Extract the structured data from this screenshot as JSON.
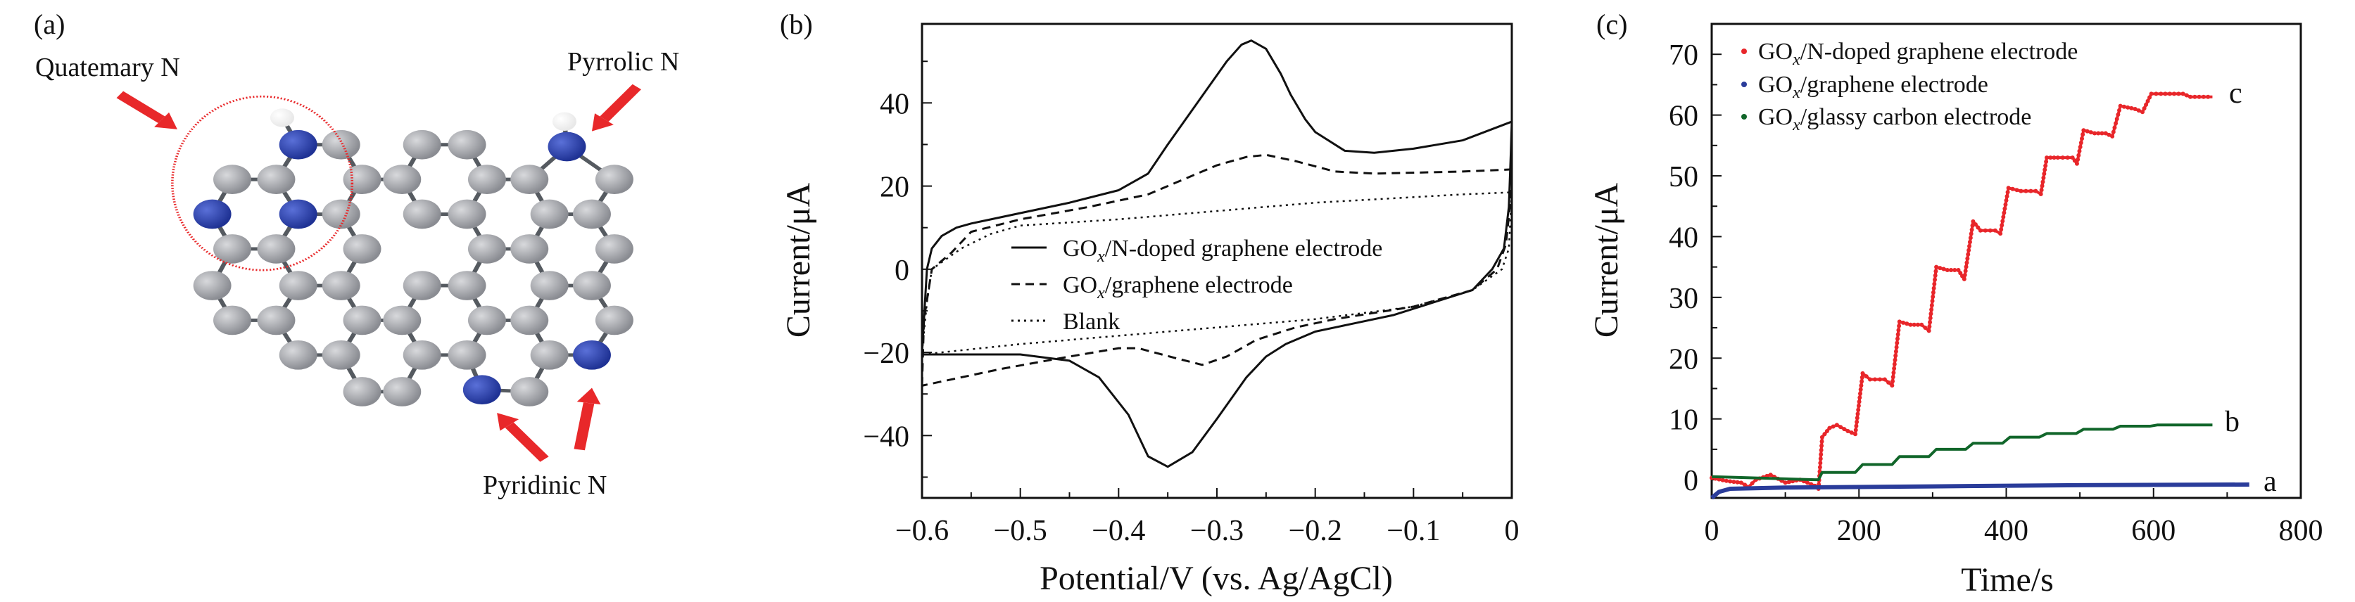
{
  "panel_a": {
    "label": "(a)",
    "annotations": {
      "quaternary": "Quatemary N",
      "pyrrolic": "Pyrrolic N",
      "pyridinic": "Pyridinic N"
    },
    "colors": {
      "carbon": "#8a8c92",
      "nitrogen": "#1f3294",
      "hydrogen": "#e8e8e8",
      "arrow": "#e8282a"
    }
  },
  "chart_data": [
    {
      "type": "line",
      "panel_label": "(b)",
      "title": "",
      "xlabel": "Potential/V (vs. Ag/AgCl)",
      "ylabel": "Current/μA",
      "xlim": [
        -0.6,
        0
      ],
      "ylim": [
        -55,
        59
      ],
      "xticks": [
        -0.6,
        -0.5,
        -0.4,
        -0.3,
        -0.2,
        -0.1,
        0
      ],
      "xtick_labels": [
        "−0.6",
        "−0.5",
        "−0.4",
        "−0.3",
        "−0.2",
        "−0.1",
        "0"
      ],
      "yticks": [
        -40,
        -20,
        0,
        20,
        40
      ],
      "ytick_labels": [
        "−40",
        "−20",
        "0",
        "20",
        "40"
      ],
      "grid": false,
      "legend_position": "center",
      "series": [
        {
          "name": "GOx/N-doped graphene electrode",
          "legend": {
            "prefix": "GO",
            "sub": "x",
            "suffix": "/N-doped graphene electrode"
          },
          "style": "solid",
          "x": [
            -0.6,
            -0.597,
            -0.595,
            -0.59,
            -0.58,
            -0.565,
            -0.55,
            -0.5,
            -0.45,
            -0.4,
            -0.37,
            -0.35,
            -0.32,
            -0.29,
            -0.275,
            -0.265,
            -0.25,
            -0.235,
            -0.225,
            -0.21,
            -0.2,
            -0.17,
            -0.14,
            -0.1,
            -0.05,
            0,
            -0.001,
            -0.003,
            -0.008,
            -0.02,
            -0.04,
            -0.08,
            -0.12,
            -0.16,
            -0.2,
            -0.23,
            -0.25,
            -0.27,
            -0.3,
            -0.325,
            -0.35,
            -0.37,
            -0.39,
            -0.42,
            -0.45,
            -0.5,
            -0.55,
            -0.6
          ],
          "y": [
            -20,
            -8,
            0,
            5,
            8,
            10,
            11,
            13.5,
            16,
            19,
            23,
            30,
            40,
            50,
            54,
            55,
            53,
            47,
            42,
            36,
            33,
            28.5,
            28,
            29,
            31,
            35.5,
            28,
            15,
            5,
            0,
            -5,
            -8,
            -11,
            -13,
            -15,
            -18,
            -21,
            -26,
            -36,
            -44,
            -47.5,
            -45,
            -35,
            -26,
            -22,
            -20.5,
            -20.5,
            -20.5
          ]
        },
        {
          "name": "GOx/graphene electrode",
          "legend": {
            "prefix": "GO",
            "sub": "x",
            "suffix": "/graphene electrode"
          },
          "style": "dashed",
          "x": [
            -0.6,
            -0.598,
            -0.59,
            -0.57,
            -0.55,
            -0.5,
            -0.43,
            -0.37,
            -0.34,
            -0.3,
            -0.27,
            -0.25,
            -0.22,
            -0.18,
            -0.14,
            -0.05,
            0,
            -0.002,
            -0.006,
            -0.015,
            -0.04,
            -0.1,
            -0.18,
            -0.22,
            -0.26,
            -0.29,
            -0.315,
            -0.34,
            -0.38,
            -0.4,
            -0.45,
            -0.52,
            -0.6
          ],
          "y": [
            -28,
            -12,
            0,
            4,
            9,
            12,
            15,
            18,
            21,
            25,
            27,
            27.5,
            26,
            23.5,
            23,
            23.5,
            24,
            15,
            6,
            0,
            -5,
            -9,
            -12,
            -14,
            -17,
            -21,
            -23,
            -21.5,
            -19,
            -19,
            -21,
            -24,
            -28
          ]
        },
        {
          "name": "Blank",
          "legend": {
            "prefix": "Blank",
            "sub": "",
            "suffix": ""
          },
          "style": "dotted",
          "x": [
            -0.6,
            -0.595,
            -0.59,
            -0.56,
            -0.53,
            -0.5,
            -0.4,
            -0.3,
            -0.2,
            -0.05,
            0,
            -0.003,
            -0.01,
            -0.04,
            -0.1,
            -0.2,
            -0.3,
            -0.4,
            -0.5,
            -0.6
          ],
          "y": [
            -20,
            -8,
            0,
            5,
            8.5,
            10.5,
            12,
            14,
            16,
            18,
            18.5,
            5,
            0,
            -5,
            -9,
            -12,
            -14,
            -16,
            -18,
            -20.5
          ]
        }
      ]
    },
    {
      "type": "line",
      "panel_label": "(c)",
      "title": "",
      "xlabel": "Time/s",
      "ylabel": "Current/μA",
      "xlim": [
        0,
        800
      ],
      "ylim": [
        -3,
        75
      ],
      "xticks": [
        0,
        200,
        400,
        600,
        800
      ],
      "xtick_labels": [
        "0",
        "200",
        "400",
        "600",
        "800"
      ],
      "yticks": [
        0,
        10,
        20,
        30,
        40,
        50,
        60,
        70
      ],
      "ytick_labels": [
        "0",
        "10",
        "20",
        "30",
        "40",
        "50",
        "60",
        "70"
      ],
      "grid": false,
      "legend_position": "top-left",
      "series": [
        {
          "name": "GOx/N-doped graphene electrode",
          "legend": {
            "prefix": "GO",
            "sub": "x",
            "suffix": "/N-doped graphene electrode"
          },
          "color": "#e8262a",
          "end_label": "c",
          "points": [
            [
              0,
              0.3
            ],
            [
              20,
              -0.2
            ],
            [
              40,
              -0.5
            ],
            [
              50,
              -1.2
            ],
            [
              60,
              0
            ],
            [
              80,
              0.8
            ],
            [
              100,
              -0.5
            ],
            [
              120,
              0
            ],
            [
              140,
              -1
            ],
            [
              145,
              -1.5
            ],
            [
              150,
              7
            ],
            [
              160,
              8.5
            ],
            [
              170,
              9
            ],
            [
              185,
              8
            ],
            [
              195,
              7.5
            ],
            [
              205,
              17.5
            ],
            [
              215,
              16.5
            ],
            [
              235,
              16.5
            ],
            [
              245,
              15.5
            ],
            [
              255,
              26
            ],
            [
              270,
              25.5
            ],
            [
              285,
              25.5
            ],
            [
              295,
              24.5
            ],
            [
              305,
              35
            ],
            [
              320,
              34.5
            ],
            [
              335,
              34.5
            ],
            [
              343,
              33
            ],
            [
              355,
              42.5
            ],
            [
              365,
              41
            ],
            [
              385,
              41
            ],
            [
              392,
              40.5
            ],
            [
              403,
              48
            ],
            [
              420,
              47.5
            ],
            [
              440,
              47.5
            ],
            [
              447,
              47
            ],
            [
              455,
              53
            ],
            [
              470,
              53
            ],
            [
              490,
              53
            ],
            [
              496,
              52
            ],
            [
              505,
              57.5
            ],
            [
              520,
              57
            ],
            [
              535,
              57
            ],
            [
              544,
              56.5
            ],
            [
              555,
              61.5
            ],
            [
              575,
              61
            ],
            [
              585,
              60.5
            ],
            [
              597,
              63.5
            ],
            [
              610,
              63.5
            ],
            [
              640,
              63.5
            ],
            [
              650,
              63
            ],
            [
              680,
              63
            ]
          ]
        },
        {
          "name": "GOx/graphene electrode",
          "legend": {
            "prefix": "GO",
            "sub": "x",
            "suffix": "/graphene electrode"
          },
          "color": "#2a3c9a",
          "end_label": "a",
          "points": [
            [
              0,
              -3
            ],
            [
              10,
              -2
            ],
            [
              25,
              -1.5
            ],
            [
              100,
              -1.3
            ],
            [
              300,
              -1.1
            ],
            [
              500,
              -0.9
            ],
            [
              730,
              -0.8
            ]
          ]
        },
        {
          "name": "GOx/glassy carbon electrode",
          "legend": {
            "prefix": "GO",
            "sub": "x",
            "suffix": "/glassy carbon electrode"
          },
          "color": "#11662a",
          "end_label": "b",
          "points": [
            [
              0,
              0.5
            ],
            [
              140,
              0
            ],
            [
              145,
              0
            ],
            [
              150,
              1.2
            ],
            [
              195,
              1.2
            ],
            [
              205,
              2.5
            ],
            [
              245,
              2.5
            ],
            [
              255,
              3.8
            ],
            [
              295,
              3.8
            ],
            [
              305,
              5
            ],
            [
              345,
              5
            ],
            [
              355,
              6
            ],
            [
              395,
              6
            ],
            [
              405,
              7
            ],
            [
              445,
              7
            ],
            [
              455,
              7.6
            ],
            [
              495,
              7.6
            ],
            [
              505,
              8.3
            ],
            [
              545,
              8.3
            ],
            [
              555,
              8.8
            ],
            [
              595,
              8.8
            ],
            [
              605,
              9
            ],
            [
              680,
              9
            ]
          ]
        }
      ]
    }
  ]
}
